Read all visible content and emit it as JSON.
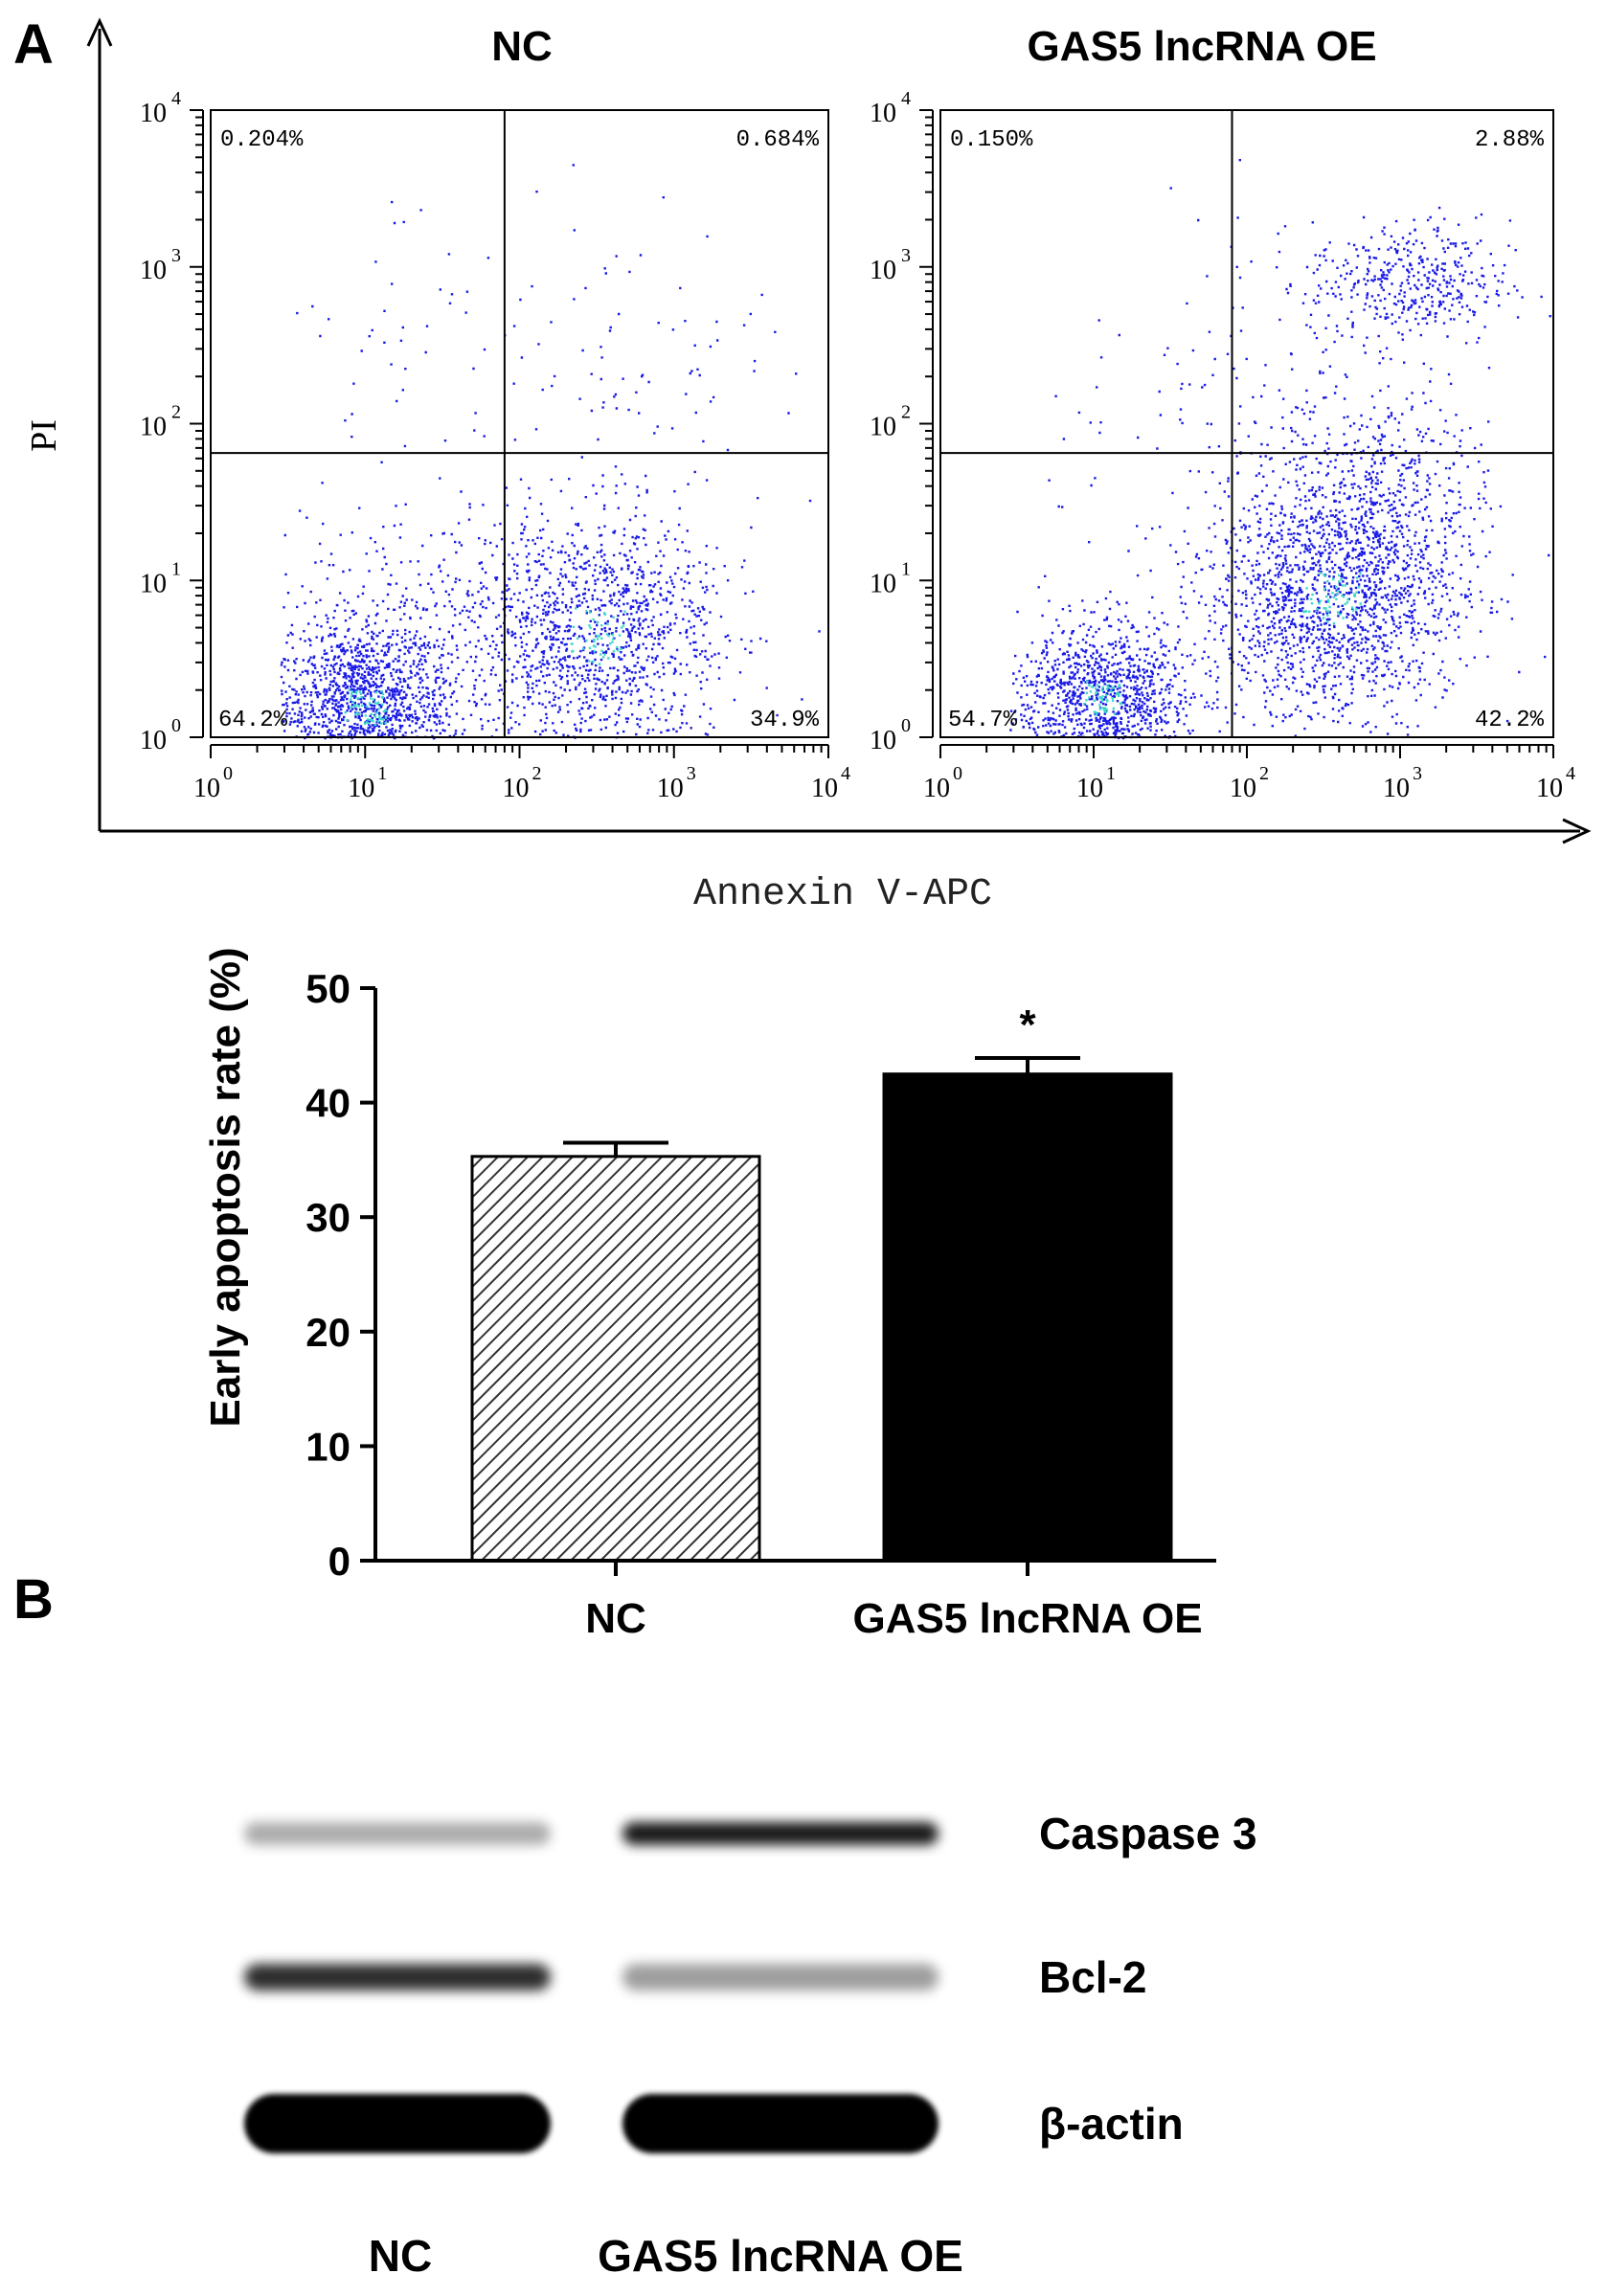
{
  "panel_labels": {
    "a": "A",
    "b": "B"
  },
  "flow": {
    "y_axis_label": "PI",
    "x_axis_label": "Annexin V-APC",
    "tick_labels": [
      "10",
      "10",
      "10",
      "10",
      "10"
    ],
    "tick_exponents": [
      "0",
      "1",
      "2",
      "3",
      "4"
    ],
    "dot_color": "#1a1ae6",
    "dense_dot_color": "#3fd8c8"
  },
  "chart_data": [
    {
      "type": "scatter",
      "title": "NC",
      "xscale": "log",
      "yscale": "log",
      "xlim": [
        1,
        10000
      ],
      "ylim": [
        1,
        10000
      ],
      "gate": {
        "x": 80,
        "y": 65
      },
      "quadrants": {
        "upper_left": "0.204%",
        "upper_right": "0.684%",
        "lower_left": "64.2%",
        "lower_right": "34.9%"
      }
    },
    {
      "type": "scatter",
      "title": "GAS5 lncRNA OE",
      "xscale": "log",
      "yscale": "log",
      "xlim": [
        1,
        10000
      ],
      "ylim": [
        1,
        10000
      ],
      "gate": {
        "x": 80,
        "y": 65
      },
      "quadrants": {
        "upper_left": "0.150%",
        "upper_right": "2.88%",
        "lower_left": "54.7%",
        "lower_right": "42.2%"
      }
    },
    {
      "type": "bar",
      "categories": [
        "NC",
        "GAS5 lncRNA OE"
      ],
      "values": [
        35.3,
        42.5
      ],
      "errors": [
        1.2,
        1.4
      ],
      "ylabel": "Early apoptosis rate (%)",
      "ylim": [
        0,
        50
      ],
      "yticks": [
        0,
        10,
        20,
        30,
        40,
        50
      ],
      "significance": [
        "",
        "*"
      ],
      "fills": [
        "hatched",
        "#000000"
      ]
    }
  ],
  "blot": {
    "bands": [
      "Caspase 3",
      "Bcl-2",
      "β-actin"
    ],
    "lanes": [
      "NC",
      "GAS5 lncRNA OE"
    ],
    "intensity": [
      [
        0.32,
        0.9
      ],
      [
        0.82,
        0.38
      ],
      [
        1.0,
        1.0
      ]
    ]
  }
}
